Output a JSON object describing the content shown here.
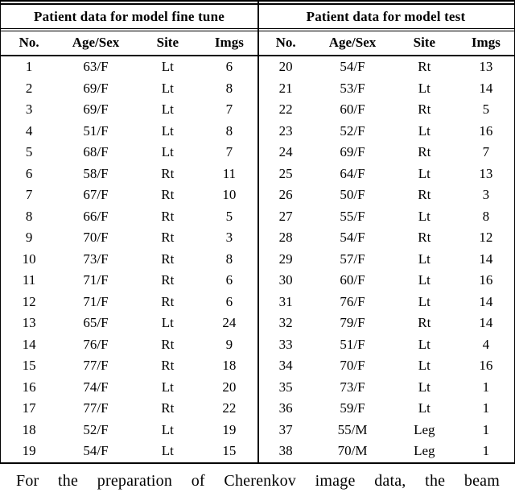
{
  "colors": {
    "background": "#ffffff",
    "text": "#000000",
    "rule": "#000000"
  },
  "tables": [
    {
      "title": "Patient data for model fine tune",
      "columns": [
        "No.",
        "Age/Sex",
        "Site",
        "Imgs"
      ],
      "rows": [
        [
          "1",
          "63/F",
          "Lt",
          "6"
        ],
        [
          "2",
          "69/F",
          "Lt",
          "8"
        ],
        [
          "3",
          "69/F",
          "Lt",
          "7"
        ],
        [
          "4",
          "51/F",
          "Lt",
          "8"
        ],
        [
          "5",
          "68/F",
          "Lt",
          "7"
        ],
        [
          "6",
          "58/F",
          "Rt",
          "11"
        ],
        [
          "7",
          "67/F",
          "Rt",
          "10"
        ],
        [
          "8",
          "66/F",
          "Rt",
          "5"
        ],
        [
          "9",
          "70/F",
          "Rt",
          "3"
        ],
        [
          "10",
          "73/F",
          "Rt",
          "8"
        ],
        [
          "11",
          "71/F",
          "Rt",
          "6"
        ],
        [
          "12",
          "71/F",
          "Rt",
          "6"
        ],
        [
          "13",
          "65/F",
          "Lt",
          "24"
        ],
        [
          "14",
          "76/F",
          "Rt",
          "9"
        ],
        [
          "15",
          "77/F",
          "Rt",
          "18"
        ],
        [
          "16",
          "74/F",
          "Lt",
          "20"
        ],
        [
          "17",
          "77/F",
          "Rt",
          "22"
        ],
        [
          "18",
          "52/F",
          "Lt",
          "19"
        ],
        [
          "19",
          "54/F",
          "Lt",
          "15"
        ]
      ]
    },
    {
      "title": "Patient data for model test",
      "columns": [
        "No.",
        "Age/Sex",
        "Site",
        "Imgs"
      ],
      "rows": [
        [
          "20",
          "54/F",
          "Rt",
          "13"
        ],
        [
          "21",
          "53/F",
          "Lt",
          "14"
        ],
        [
          "22",
          "60/F",
          "Rt",
          "5"
        ],
        [
          "23",
          "52/F",
          "Lt",
          "16"
        ],
        [
          "24",
          "69/F",
          "Rt",
          "7"
        ],
        [
          "25",
          "64/F",
          "Lt",
          "13"
        ],
        [
          "26",
          "50/F",
          "Rt",
          "3"
        ],
        [
          "27",
          "55/F",
          "Lt",
          "8"
        ],
        [
          "28",
          "54/F",
          "Rt",
          "12"
        ],
        [
          "29",
          "57/F",
          "Lt",
          "14"
        ],
        [
          "30",
          "60/F",
          "Lt",
          "16"
        ],
        [
          "31",
          "76/F",
          "Lt",
          "14"
        ],
        [
          "32",
          "79/F",
          "Rt",
          "14"
        ],
        [
          "33",
          "51/F",
          "Lt",
          "4"
        ],
        [
          "34",
          "70/F",
          "Lt",
          "16"
        ],
        [
          "35",
          "73/F",
          "Lt",
          "1"
        ],
        [
          "36",
          "59/F",
          "Lt",
          "1"
        ],
        [
          "37",
          "55/M",
          "Leg",
          "1"
        ],
        [
          "38",
          "70/M",
          "Leg",
          "1"
        ]
      ]
    }
  ],
  "caption": "For the preparation of Cherenkov image data, the beam"
}
